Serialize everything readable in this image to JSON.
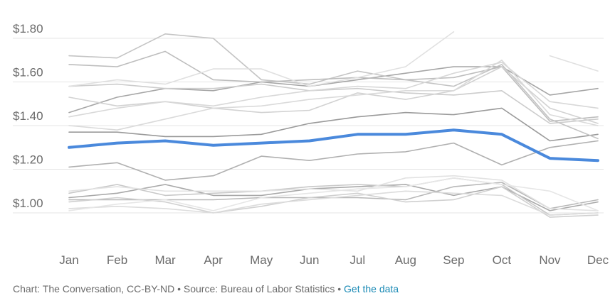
{
  "chart_data": {
    "type": "line",
    "categories": [
      "Jan",
      "Feb",
      "Mar",
      "Apr",
      "May",
      "Jun",
      "Jul",
      "Aug",
      "Sep",
      "Oct",
      "Nov",
      "Dec"
    ],
    "ylim": [
      0.95,
      1.84
    ],
    "yticks": [
      {
        "value": 1.0,
        "label": "$1.00"
      },
      {
        "value": 1.2,
        "label": "$1.20"
      },
      {
        "value": 1.4,
        "label": "$1.40"
      },
      {
        "value": 1.6,
        "label": "$1.60"
      },
      {
        "value": 1.8,
        "label": "$1.80"
      }
    ],
    "grid": true,
    "highlight_color": "#4a89dc",
    "series": [
      {
        "values": [
          1.3,
          1.32,
          1.33,
          1.31,
          1.32,
          1.33,
          1.36,
          1.36,
          1.38,
          1.36,
          1.25,
          1.24
        ],
        "color": "#4a89dc",
        "width": 4,
        "highlight": true
      },
      {
        "values": [
          1.37,
          1.37,
          1.35,
          1.35,
          1.36,
          1.41,
          1.44,
          1.46,
          1.45,
          1.48,
          1.33,
          1.36
        ],
        "color": "#9a9a9a"
      },
      {
        "values": [
          1.46,
          1.53,
          1.57,
          1.56,
          1.6,
          1.58,
          1.61,
          1.64,
          1.67,
          1.67,
          1.54,
          1.57
        ],
        "color": "#a6a6a6"
      },
      {
        "values": [
          1.21,
          1.23,
          1.15,
          1.17,
          1.26,
          1.24,
          1.27,
          1.28,
          1.32,
          1.22,
          1.3,
          1.33
        ],
        "color": "#b0b0b0"
      },
      {
        "values": [
          1.07,
          1.09,
          1.13,
          1.08,
          1.08,
          1.11,
          1.12,
          1.13,
          1.08,
          1.12,
          1.01,
          1.05
        ],
        "color": "#a8a8a8"
      },
      {
        "values": [
          1.72,
          1.71,
          1.82,
          1.8,
          1.61,
          1.59,
          1.65,
          1.61,
          1.58,
          1.68,
          1.43,
          1.34
        ],
        "color": "#c4c4c4"
      },
      {
        "values": [
          1.68,
          1.67,
          1.74,
          1.61,
          1.6,
          1.61,
          1.62,
          1.61,
          1.62,
          1.67,
          1.42,
          1.44
        ],
        "color": "#bdbdbd"
      },
      {
        "values": [
          1.58,
          1.59,
          1.57,
          1.57,
          1.59,
          1.56,
          1.57,
          1.55,
          1.54,
          1.56,
          1.41,
          1.43
        ],
        "color": "#cccccc"
      },
      {
        "values": [
          1.58,
          1.61,
          1.59,
          1.66,
          1.66,
          1.58,
          1.62,
          1.67,
          1.83,
          null,
          null,
          null
        ],
        "color": "#e0e0e0"
      },
      {
        "values": [
          null,
          null,
          null,
          null,
          null,
          null,
          null,
          null,
          null,
          null,
          1.72,
          1.65
        ],
        "color": "#e0e0e0"
      },
      {
        "values": [
          1.53,
          1.49,
          1.51,
          1.48,
          1.46,
          1.47,
          1.55,
          1.52,
          1.56,
          1.67,
          1.48,
          1.41
        ],
        "color": "#d2d2d2"
      },
      {
        "values": [
          1.44,
          1.48,
          1.51,
          1.49,
          1.53,
          1.56,
          1.58,
          1.57,
          1.64,
          1.69,
          1.51,
          1.48
        ],
        "color": "#d8d8d8"
      },
      {
        "values": [
          1.4,
          1.38,
          1.43,
          1.48,
          1.49,
          1.52,
          1.54,
          1.56,
          1.56,
          1.7,
          1.45,
          1.4
        ],
        "color": "#dadada"
      },
      {
        "values": [
          1.09,
          1.13,
          1.08,
          1.09,
          1.1,
          1.12,
          1.13,
          1.12,
          1.16,
          1.13,
          0.99,
          1.0
        ],
        "color": "#c8c8c8"
      },
      {
        "values": [
          1.06,
          1.06,
          1.06,
          1.06,
          1.07,
          1.07,
          1.07,
          1.06,
          1.12,
          1.14,
          1.02,
          1.06
        ],
        "color": "#b8b8b8"
      },
      {
        "values": [
          1.05,
          1.07,
          1.05,
          1.0,
          1.03,
          1.07,
          1.09,
          1.05,
          1.06,
          1.12,
          0.98,
          0.99
        ],
        "color": "#d0d0d0"
      },
      {
        "values": [
          1.02,
          1.03,
          1.02,
          1.0,
          1.04,
          1.06,
          1.08,
          1.1,
          1.09,
          1.08,
          0.99,
          1.0
        ],
        "color": "#dcdcdc"
      },
      {
        "values": [
          1.1,
          1.12,
          1.1,
          1.1,
          1.1,
          1.11,
          1.1,
          1.16,
          1.17,
          1.15,
          1.02,
          1.01
        ],
        "color": "#e2e2e2"
      },
      {
        "values": [
          1.01,
          1.04,
          1.06,
          1.01,
          1.07,
          1.09,
          1.11,
          1.12,
          1.16,
          1.13,
          1.1,
          1.01
        ],
        "color": "#e6e6e6"
      }
    ]
  },
  "footer": {
    "credit": "Chart: The Conversation, CC-BY-ND • Source: Bureau of Labor Statistics • ",
    "link": "Get the data"
  }
}
